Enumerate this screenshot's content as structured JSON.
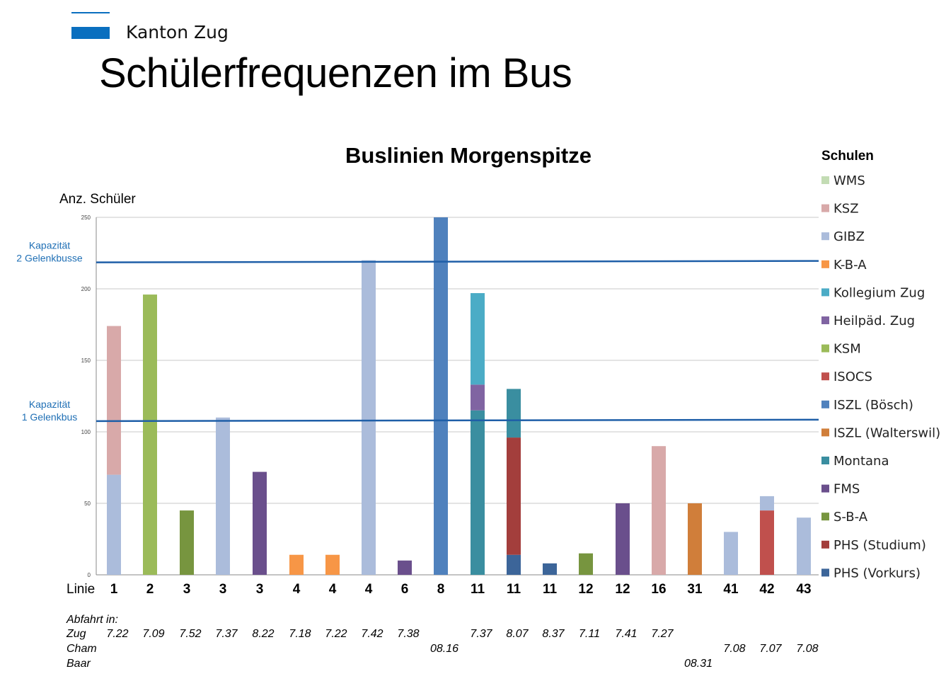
{
  "header": {
    "brand": "Kanton Zug",
    "title": "Schülerfrequenzen im Bus"
  },
  "colors": {
    "brand": "#0a6fbf",
    "capacity_line": "#1f5fa8",
    "capacity_label": "#1f6fb5"
  },
  "chart_data": {
    "type": "bar",
    "stacked": true,
    "title": "Buslinien Morgenspitze",
    "ylabel": "Anz. Schüler",
    "xlabel": "Linie",
    "ylim": [
      0,
      250
    ],
    "yticks": [
      0,
      50,
      100,
      150,
      200,
      250
    ],
    "grid": true,
    "legend_title": "Schulen",
    "legend_position": "right",
    "categories": [
      "1",
      "2",
      "3",
      "3",
      "3",
      "4",
      "4",
      "4",
      "6",
      "8",
      "11",
      "11",
      "11",
      "12",
      "12",
      "16",
      "31",
      "41",
      "42",
      "43"
    ],
    "series": [
      {
        "name": "WMS",
        "color": "#c3dcb4",
        "values": [
          0,
          0,
          0,
          0,
          0,
          0,
          0,
          0,
          0,
          0,
          0,
          0,
          0,
          0,
          0,
          0,
          0,
          0,
          0,
          0
        ]
      },
      {
        "name": "KSZ",
        "color": "#d8a9a9",
        "values": [
          104,
          0,
          0,
          0,
          0,
          0,
          0,
          0,
          0,
          0,
          0,
          0,
          0,
          0,
          0,
          90,
          0,
          0,
          0,
          0
        ]
      },
      {
        "name": "GIBZ",
        "color": "#abbcdb",
        "values": [
          70,
          0,
          0,
          110,
          0,
          0,
          0,
          220,
          0,
          0,
          0,
          0,
          0,
          0,
          0,
          0,
          0,
          30,
          10,
          40
        ]
      },
      {
        "name": "K-B-A",
        "color": "#f79646",
        "values": [
          0,
          0,
          0,
          0,
          0,
          14,
          14,
          0,
          0,
          0,
          0,
          0,
          0,
          0,
          0,
          0,
          0,
          0,
          0,
          0
        ]
      },
      {
        "name": "Kollegium Zug",
        "color": "#4bacc6",
        "values": [
          0,
          0,
          0,
          0,
          0,
          0,
          0,
          0,
          0,
          0,
          64,
          0,
          0,
          0,
          0,
          0,
          0,
          0,
          0,
          0
        ]
      },
      {
        "name": "Heilpäd. Zug",
        "color": "#8064a2",
        "values": [
          0,
          0,
          0,
          0,
          0,
          0,
          0,
          0,
          0,
          0,
          18,
          0,
          0,
          0,
          0,
          0,
          0,
          0,
          0,
          0
        ]
      },
      {
        "name": "KSM",
        "color": "#9bbb59",
        "values": [
          0,
          196,
          0,
          0,
          0,
          0,
          0,
          0,
          0,
          0,
          0,
          0,
          0,
          0,
          0,
          0,
          0,
          0,
          0,
          0
        ]
      },
      {
        "name": "ISOCS",
        "color": "#c0504d",
        "values": [
          0,
          0,
          0,
          0,
          0,
          0,
          0,
          0,
          0,
          0,
          0,
          0,
          0,
          0,
          0,
          0,
          0,
          0,
          45,
          0
        ]
      },
      {
        "name": "ISZL (Bösch)",
        "color": "#4f81bd",
        "values": [
          0,
          0,
          0,
          0,
          0,
          0,
          0,
          0,
          0,
          250,
          0,
          0,
          0,
          0,
          0,
          0,
          0,
          0,
          0,
          0
        ]
      },
      {
        "name": "ISZL (Walterswil)",
        "color": "#d07e3a",
        "values": [
          0,
          0,
          0,
          0,
          0,
          0,
          0,
          0,
          0,
          0,
          0,
          0,
          0,
          0,
          0,
          0,
          50,
          0,
          0,
          0
        ]
      },
      {
        "name": "Montana",
        "color": "#3a8ea0",
        "values": [
          0,
          0,
          0,
          0,
          0,
          0,
          0,
          0,
          0,
          0,
          115,
          34,
          0,
          0,
          0,
          0,
          0,
          0,
          0,
          0
        ]
      },
      {
        "name": "FMS",
        "color": "#6a4f8c",
        "values": [
          0,
          0,
          0,
          0,
          72,
          0,
          0,
          0,
          10,
          0,
          0,
          0,
          0,
          0,
          50,
          0,
          0,
          0,
          0,
          0
        ]
      },
      {
        "name": "S-B-A",
        "color": "#77953f",
        "values": [
          0,
          0,
          45,
          0,
          0,
          0,
          0,
          0,
          0,
          0,
          0,
          0,
          0,
          15,
          0,
          0,
          0,
          0,
          0,
          0
        ]
      },
      {
        "name": "PHS (Studium)",
        "color": "#a33e3c",
        "values": [
          0,
          0,
          0,
          0,
          0,
          0,
          0,
          0,
          0,
          0,
          0,
          82,
          0,
          0,
          0,
          0,
          0,
          0,
          0,
          0
        ]
      },
      {
        "name": "PHS (Vorkurs)",
        "color": "#3c6599",
        "values": [
          0,
          0,
          0,
          0,
          0,
          0,
          0,
          0,
          0,
          0,
          0,
          14,
          8,
          0,
          0,
          0,
          0,
          0,
          0,
          0
        ]
      }
    ],
    "stack_order": [
      "PHS (Vorkurs)",
      "PHS (Studium)",
      "S-B-A",
      "FMS",
      "Montana",
      "ISZL (Walterswil)",
      "ISZL (Bösch)",
      "ISOCS",
      "KSM",
      "Heilpäd. Zug",
      "Kollegium Zug",
      "K-B-A",
      "GIBZ",
      "KSZ",
      "WMS"
    ],
    "capacity_lines": [
      {
        "value": 219,
        "label_lines": [
          "Kapazität",
          "2 Gelenkbusse"
        ]
      },
      {
        "value": 108,
        "label_lines": [
          "Kapazität",
          "1 Gelenkbus"
        ]
      }
    ],
    "departures": {
      "label": "Abfahrt in:",
      "rows": [
        {
          "place": "Zug",
          "times": [
            "7.22",
            "7.09",
            "7.52",
            "7.37",
            "8.22",
            "7.18",
            "7.22",
            "7.42",
            "7.38",
            "",
            "7.37",
            "8.07",
            "8.37",
            "7.11",
            "7.41",
            "7.27",
            "",
            "",
            "",
            ""
          ]
        },
        {
          "place": "Cham",
          "times": [
            "",
            "",
            "",
            "",
            "",
            "",
            "",
            "",
            "",
            "08.16",
            "",
            "",
            "",
            "",
            "",
            "",
            "",
            "7.08",
            "7.07",
            "7.08"
          ]
        },
        {
          "place": "Baar",
          "times": [
            "",
            "",
            "",
            "",
            "",
            "",
            "",
            "",
            "",
            "",
            "",
            "",
            "",
            "",
            "",
            "",
            "08.31",
            "",
            "",
            ""
          ]
        }
      ]
    }
  }
}
